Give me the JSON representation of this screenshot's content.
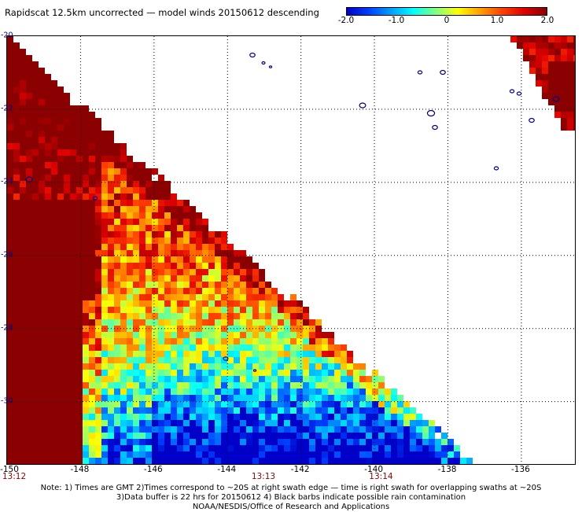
{
  "title": "Rapidscat 12.5km uncorrected — model winds 20150612 descending",
  "colorbar": {
    "min": -2.0,
    "max": 2.0,
    "ticks": [
      "-2.0",
      "-1.0",
      "0",
      "1.0",
      "2.0"
    ],
    "tick_values": [
      -2.0,
      -1.0,
      0,
      1.0,
      2.0
    ],
    "colors": [
      "#0000c8",
      "#0040ff",
      "#00a0ff",
      "#00ffff",
      "#80ff80",
      "#ffff00",
      "#ffa000",
      "#ff4000",
      "#e00000",
      "#8b0000"
    ]
  },
  "map": {
    "lon_range": [
      -150,
      -134.5
    ],
    "lat_range": [
      -20,
      -31.75
    ],
    "lon_ticks": [
      "-150",
      "-148",
      "-146",
      "-144",
      "-142",
      "-140",
      "-138",
      "-136"
    ],
    "lon_tick_values": [
      -150,
      -148,
      -146,
      -144,
      -142,
      -140,
      -138,
      -136
    ],
    "lat_ticks": [
      "-20",
      "-22",
      "-24",
      "-26",
      "-28",
      "-30"
    ],
    "lat_tick_values": [
      -20,
      -22,
      -24,
      -26,
      -28,
      -30
    ],
    "grid_lines": "dotted",
    "land_outline_color": "#000080",
    "swath_descriptions": [
      "left swath (main, below diagonal edge)",
      "right swath (upper-right corner)"
    ]
  },
  "time_labels": [
    {
      "text": "13:12",
      "lon": -150
    },
    {
      "text": "13:13",
      "lon": -143
    },
    {
      "text": "13:14",
      "lon": -139.8
    }
  ],
  "notes": [
    "Note: 1) Times are GMT 2)Times correspond to ~20S at right swath edge — time is right swath for overlapping swaths at ~20S",
    "3)Data buffer is 22 hrs for 20150612 4) Black barbs indicate possible rain contamination",
    "NOAA/NESDIS/Office of Research and Applications"
  ]
}
